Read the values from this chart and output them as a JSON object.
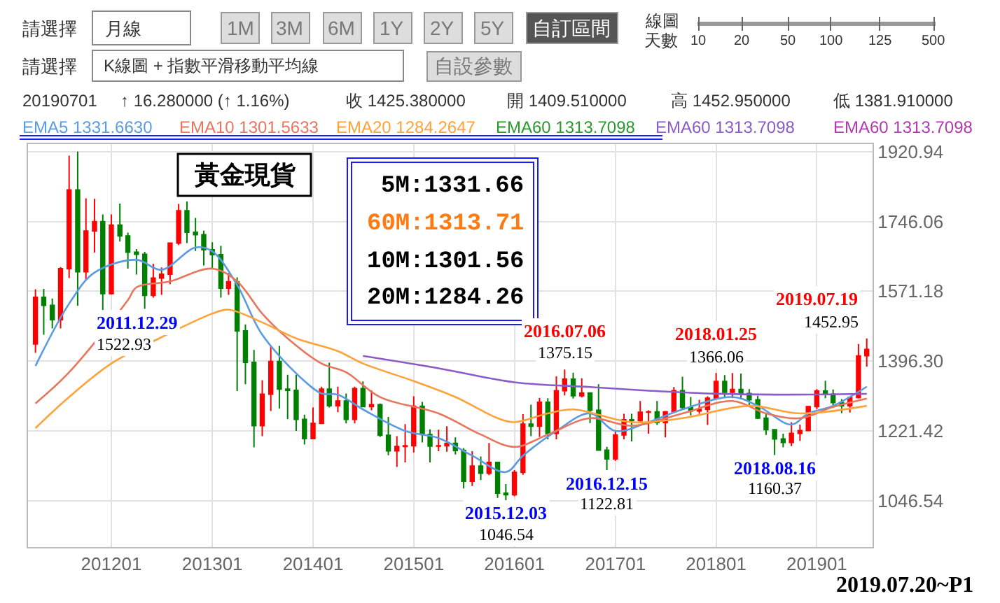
{
  "chart_data": {
    "type": "candlestick",
    "x": [
      "2011-04",
      "2011-05",
      "2011-06",
      "2011-07",
      "2011-08",
      "2011-09",
      "2011-10",
      "2011-11",
      "2011-12",
      "2012-01",
      "2012-02",
      "2012-03",
      "2012-04",
      "2012-05",
      "2012-06",
      "2012-07",
      "2012-08",
      "2012-09",
      "2012-10",
      "2012-11",
      "2012-12",
      "2013-01",
      "2013-02",
      "2013-03",
      "2013-04",
      "2013-05",
      "2013-06",
      "2013-07",
      "2013-08",
      "2013-09",
      "2013-10",
      "2013-11",
      "2013-12",
      "2014-01",
      "2014-02",
      "2014-03",
      "2014-04",
      "2014-05",
      "2014-06",
      "2014-07",
      "2014-08",
      "2014-09",
      "2014-10",
      "2014-11",
      "2014-12",
      "2015-01",
      "2015-02",
      "2015-03",
      "2015-04",
      "2015-05",
      "2015-06",
      "2015-07",
      "2015-08",
      "2015-09",
      "2015-10",
      "2015-11",
      "2015-12",
      "2016-01",
      "2016-02",
      "2016-03",
      "2016-04",
      "2016-05",
      "2016-06",
      "2016-07",
      "2016-08",
      "2016-09",
      "2016-10",
      "2016-11",
      "2016-12",
      "2017-01",
      "2017-02",
      "2017-03",
      "2017-04",
      "2017-05",
      "2017-06",
      "2017-07",
      "2017-08",
      "2017-09",
      "2017-10",
      "2017-11",
      "2017-12",
      "2018-01",
      "2018-02",
      "2018-03",
      "2018-04",
      "2018-05",
      "2018-06",
      "2018-07",
      "2018-08",
      "2018-09",
      "2018-10",
      "2018-11",
      "2018-12",
      "2019-01",
      "2019-02",
      "2019-03",
      "2019-04",
      "2019-05",
      "2019-06",
      "2019-07"
    ],
    "ohlc": [
      [
        1439,
        1576,
        1417,
        1556
      ],
      [
        1556,
        1577,
        1462,
        1536
      ],
      [
        1536,
        1553,
        1478,
        1500
      ],
      [
        1500,
        1632,
        1478,
        1628
      ],
      [
        1628,
        1911,
        1604,
        1825
      ],
      [
        1825,
        1920.94,
        1535,
        1620
      ],
      [
        1620,
        1804,
        1600,
        1722
      ],
      [
        1722,
        1803,
        1668,
        1746
      ],
      [
        1746,
        1764,
        1522.93,
        1565
      ],
      [
        1565,
        1764,
        1563,
        1737
      ],
      [
        1737,
        1791,
        1696,
        1710
      ],
      [
        1710,
        1718,
        1628,
        1669
      ],
      [
        1669,
        1677,
        1613,
        1664
      ],
      [
        1664,
        1670,
        1527,
        1561
      ],
      [
        1561,
        1640,
        1555,
        1604
      ],
      [
        1604,
        1631,
        1562,
        1614
      ],
      [
        1614,
        1692,
        1589,
        1692
      ],
      [
        1692,
        1790,
        1687,
        1773
      ],
      [
        1773,
        1796,
        1692,
        1719
      ],
      [
        1719,
        1755,
        1672,
        1713
      ],
      [
        1713,
        1723,
        1636,
        1675
      ],
      [
        1675,
        1694,
        1626,
        1663
      ],
      [
        1663,
        1685,
        1555,
        1579
      ],
      [
        1579,
        1617,
        1562,
        1595
      ],
      [
        1595,
        1606,
        1321,
        1472
      ],
      [
        1472,
        1488,
        1338,
        1393
      ],
      [
        1393,
        1424,
        1180,
        1234
      ],
      [
        1234,
        1348,
        1208,
        1313
      ],
      [
        1313,
        1434,
        1271,
        1395
      ],
      [
        1395,
        1434,
        1277,
        1326
      ],
      [
        1326,
        1362,
        1251,
        1323
      ],
      [
        1323,
        1362,
        1221,
        1250
      ],
      [
        1250,
        1262,
        1187,
        1202
      ],
      [
        1202,
        1280,
        1202,
        1240
      ],
      [
        1240,
        1332,
        1238,
        1326
      ],
      [
        1326,
        1392,
        1280,
        1284
      ],
      [
        1284,
        1332,
        1268,
        1296
      ],
      [
        1296,
        1315,
        1240,
        1250
      ],
      [
        1250,
        1332,
        1240,
        1327
      ],
      [
        1327,
        1345,
        1281,
        1282
      ],
      [
        1282,
        1323,
        1273,
        1287
      ],
      [
        1287,
        1290,
        1206,
        1210
      ],
      [
        1210,
        1256,
        1160,
        1171
      ],
      [
        1171,
        1208,
        1131,
        1182
      ],
      [
        1182,
        1238,
        1142,
        1184
      ],
      [
        1184,
        1308,
        1167,
        1283
      ],
      [
        1283,
        1294,
        1192,
        1212
      ],
      [
        1212,
        1225,
        1142,
        1183
      ],
      [
        1183,
        1224,
        1170,
        1184
      ],
      [
        1184,
        1233,
        1169,
        1190
      ],
      [
        1190,
        1205,
        1162,
        1172
      ],
      [
        1172,
        1178,
        1077,
        1095
      ],
      [
        1095,
        1170,
        1083,
        1133
      ],
      [
        1133,
        1157,
        1098,
        1115
      ],
      [
        1115,
        1191,
        1110,
        1142
      ],
      [
        1142,
        1142,
        1053,
        1065
      ],
      [
        1065,
        1088,
        1046.54,
        1061
      ],
      [
        1061,
        1123,
        1057,
        1117
      ],
      [
        1117,
        1263,
        1111,
        1238
      ],
      [
        1238,
        1287,
        1208,
        1233
      ],
      [
        1233,
        1304,
        1206,
        1293
      ],
      [
        1293,
        1303,
        1200,
        1215
      ],
      [
        1215,
        1358,
        1200,
        1322
      ],
      [
        1322,
        1375.15,
        1310,
        1351
      ],
      [
        1351,
        1367,
        1302,
        1309
      ],
      [
        1309,
        1353,
        1305,
        1316
      ],
      [
        1316,
        1317,
        1241,
        1273
      ],
      [
        1273,
        1338,
        1171,
        1173
      ],
      [
        1173,
        1181,
        1122.81,
        1151
      ],
      [
        1151,
        1220,
        1146,
        1211
      ],
      [
        1211,
        1264,
        1200,
        1249
      ],
      [
        1249,
        1264,
        1195,
        1247
      ],
      [
        1247,
        1296,
        1244,
        1268
      ],
      [
        1268,
        1273,
        1214,
        1269
      ],
      [
        1269,
        1296,
        1236,
        1242
      ],
      [
        1242,
        1271,
        1205,
        1269
      ],
      [
        1269,
        1331,
        1267,
        1322
      ],
      [
        1322,
        1357,
        1276,
        1280
      ],
      [
        1280,
        1306,
        1260,
        1271
      ],
      [
        1271,
        1299,
        1264,
        1275
      ],
      [
        1275,
        1308,
        1236,
        1303
      ],
      [
        1303,
        1366.06,
        1302,
        1345
      ],
      [
        1345,
        1361,
        1307,
        1318
      ],
      [
        1318,
        1366,
        1303,
        1325
      ],
      [
        1325,
        1365,
        1302,
        1315
      ],
      [
        1315,
        1326,
        1282,
        1299
      ],
      [
        1299,
        1309,
        1251,
        1253
      ],
      [
        1253,
        1266,
        1211,
        1224
      ],
      [
        1224,
        1225,
        1160.37,
        1201
      ],
      [
        1201,
        1214,
        1180,
        1192
      ],
      [
        1192,
        1243,
        1183,
        1215
      ],
      [
        1215,
        1237,
        1196,
        1222
      ],
      [
        1222,
        1284,
        1221,
        1282
      ],
      [
        1282,
        1326,
        1276,
        1321
      ],
      [
        1321,
        1347,
        1303,
        1313
      ],
      [
        1313,
        1325,
        1281,
        1292
      ],
      [
        1292,
        1301,
        1266,
        1284
      ],
      [
        1284,
        1306,
        1267,
        1305
      ],
      [
        1305,
        1439,
        1302,
        1409
      ],
      [
        1409.51,
        1452.95,
        1381.91,
        1425.38
      ]
    ],
    "colors": [
      "#ff0000",
      "#008000",
      "#008000",
      "#ff0000",
      "#ff0000",
      "#008000",
      "#ff0000",
      "#ff0000",
      "#008000",
      "#ff0000",
      "#008000",
      "#008000",
      "#008000",
      "#008000",
      "#ff0000",
      "#ff0000",
      "#ff0000",
      "#ff0000",
      "#008000",
      "#008000",
      "#008000",
      "#008000",
      "#008000",
      "#ff0000",
      "#008000",
      "#008000",
      "#008000",
      "#ff0000",
      "#ff0000",
      "#008000",
      "#008000",
      "#008000",
      "#008000",
      "#ff0000",
      "#ff0000",
      "#008000",
      "#ff0000",
      "#008000",
      "#ff0000",
      "#008000",
      "#ff0000",
      "#008000",
      "#008000",
      "#ff0000",
      "#ff0000",
      "#ff0000",
      "#008000",
      "#008000",
      "#ff0000",
      "#ff0000",
      "#008000",
      "#008000",
      "#ff0000",
      "#008000",
      "#ff0000",
      "#008000",
      "#008000",
      "#ff0000",
      "#ff0000",
      "#008000",
      "#ff0000",
      "#008000",
      "#ff0000",
      "#ff0000",
      "#008000",
      "#ff0000",
      "#008000",
      "#008000",
      "#008000",
      "#ff0000",
      "#ff0000",
      "#008000",
      "#ff0000",
      "#ff0000",
      "#008000",
      "#ff0000",
      "#ff0000",
      "#008000",
      "#008000",
      "#ff0000",
      "#ff0000",
      "#ff0000",
      "#008000",
      "#ff0000",
      "#008000",
      "#008000",
      "#008000",
      "#008000",
      "#008000",
      "#008000",
      "#ff0000",
      "#ff0000",
      "#ff0000",
      "#ff0000",
      "#008000",
      "#008000",
      "#008000",
      "#ff0000",
      "#ff0000",
      "#ff0000"
    ],
    "series": [
      {
        "name": "EMA5 1331.6630",
        "color": "#5b9be0",
        "type": "line",
        "x": [
          "2011-04",
          "2011-08",
          "2011-11",
          "2012-04",
          "2012-07",
          "2012-11",
          "2013-01",
          "2013-04",
          "2013-07",
          "2013-12",
          "2014-02",
          "2014-04",
          "2014-07",
          "2014-12",
          "2015-04",
          "2015-08",
          "2015-12",
          "2016-02",
          "2016-06",
          "2016-10",
          "2017-01",
          "2017-05",
          "2017-09",
          "2018-03",
          "2018-06",
          "2018-10",
          "2018-12",
          "2019-03",
          "2019-07"
        ],
        "values": [
          1384,
          1540,
          1618,
          1650,
          1625,
          1681,
          1671,
          1587,
          1462,
          1346,
          1315,
          1312,
          1275,
          1221,
          1203,
          1159,
          1118,
          1159,
          1221,
          1265,
          1221,
          1243,
          1275,
          1306,
          1284,
          1237,
          1265,
          1284,
          1332
        ]
      },
      {
        "name": "EMA10 1301.5633",
        "color": "#e8755e",
        "type": "line",
        "x": [
          "2011-04",
          "2011-08",
          "2012-03",
          "2012-04",
          "2012-08",
          "2013-01",
          "2013-04",
          "2013-07",
          "2013-10",
          "2014-02",
          "2014-05",
          "2014-09",
          "2015-04",
          "2015-09",
          "2016-01",
          "2016-05",
          "2016-10",
          "2017-03",
          "2017-09",
          "2018-03",
          "2018-07",
          "2018-11",
          "2019-03",
          "2019-07"
        ],
        "values": [
          1290,
          1368,
          1549,
          1581,
          1596,
          1628,
          1596,
          1515,
          1453,
          1390,
          1368,
          1306,
          1265,
          1212,
          1181,
          1212,
          1253,
          1234,
          1265,
          1296,
          1265,
          1253,
          1281,
          1302
        ]
      },
      {
        "name": "EMA20 1284.2647",
        "color": "#ffa23a",
        "type": "line",
        "x": [
          "2011-04",
          "2011-08",
          "2012-01",
          "2012-07",
          "2013-01",
          "2013-03",
          "2013-07",
          "2013-11",
          "2014-04",
          "2014-07",
          "2015-01",
          "2015-06",
          "2015-11",
          "2016-01",
          "2016-05",
          "2016-08",
          "2017-03",
          "2017-09",
          "2018-05",
          "2018-11",
          "2019-07"
        ],
        "values": [
          1228,
          1306,
          1390,
          1456,
          1515,
          1525,
          1493,
          1453,
          1421,
          1390,
          1346,
          1306,
          1253,
          1243,
          1265,
          1275,
          1243,
          1253,
          1284,
          1265,
          1284
        ]
      },
      {
        "name": "EMA60 1313.7098",
        "color": "#2a9a2a",
        "type": "line",
        "values": [
          null,
          null,
          null,
          null,
          null,
          null,
          null,
          null,
          null,
          null,
          null,
          null,
          null,
          null,
          null,
          null,
          null,
          null,
          null,
          null,
          null,
          null,
          null,
          null,
          null,
          null,
          null,
          null,
          null,
          null,
          null,
          null,
          null,
          null,
          null,
          null,
          null,
          null,
          null,
          null,
          null,
          null,
          null,
          null,
          null,
          null,
          null,
          null,
          null,
          null,
          null,
          null,
          null,
          null,
          null,
          null,
          null,
          null,
          null,
          null,
          null,
          null,
          null,
          null,
          null,
          null,
          null,
          null,
          null,
          null,
          null,
          null,
          null,
          null,
          null,
          null,
          null,
          null,
          null,
          null,
          null,
          null,
          null,
          null,
          null,
          null,
          null,
          null,
          null,
          null,
          null,
          null,
          null,
          null,
          null,
          null,
          null,
          null,
          null,
          null
        ]
      },
      {
        "name": "EMA60 1313.7098",
        "color": "#8a5cc8",
        "type": "line",
        "x": [
          "2014-07",
          "2015-04",
          "2016-01",
          "2016-10",
          "2017-05",
          "2017-12",
          "2018-08",
          "2019-07"
        ],
        "values": [
          1409,
          1378,
          1343,
          1331,
          1322,
          1315,
          1312,
          1314
        ]
      },
      {
        "name": "EMA60 1313.7098",
        "color": "#b03ab0",
        "type": "line",
        "values": [
          null,
          null,
          null,
          null,
          null,
          null,
          null,
          null,
          null,
          null,
          null,
          null,
          null,
          null,
          null,
          null,
          null,
          null,
          null,
          null,
          null,
          null,
          null,
          null,
          null,
          null,
          null,
          null,
          null,
          null,
          null,
          null,
          null,
          null,
          null,
          null,
          null,
          null,
          null,
          null,
          null,
          null,
          null,
          null,
          null,
          null,
          null,
          null,
          null,
          null,
          null,
          null,
          null,
          null,
          null,
          null,
          null,
          null,
          null,
          null,
          null,
          null,
          null,
          null,
          null,
          null,
          null,
          null,
          null,
          null,
          null,
          null,
          null,
          null,
          null,
          null,
          null,
          null,
          null,
          null,
          null,
          null,
          null,
          null,
          null,
          null,
          null,
          null,
          null,
          null,
          null,
          null,
          null,
          null,
          null,
          null,
          null,
          null,
          null,
          null
        ]
      }
    ],
    "legend": "top",
    "grid": true,
    "xlim": [
      "2011-03-05",
      "2019-07-22"
    ],
    "xticks": [
      {
        "value": "2012-01",
        "label": "201201"
      },
      {
        "value": "2013-01",
        "label": "201301"
      },
      {
        "value": "2014-01",
        "label": "201401"
      },
      {
        "value": "2015-01",
        "label": "201501"
      },
      {
        "value": "2016-01",
        "label": "201601"
      },
      {
        "value": "2017-01",
        "label": "201701"
      },
      {
        "value": "2018-01",
        "label": "201801"
      },
      {
        "value": "2019-01",
        "label": "201901"
      }
    ],
    "ylim": [
      930,
      1940
    ],
    "yticks": [
      1046.54,
      1221.42,
      {
        "value": 1396.3,
        "label": "1396.30"
      },
      1571.18,
      1746.06,
      1920.94
    ],
    "annotations": [
      "請選擇",
      "月線",
      "1M",
      "3M",
      "6M",
      "1Y",
      "2Y",
      "5Y",
      "自訂區間",
      "線圖",
      "天數",
      "10",
      "20",
      "50",
      "100",
      "125",
      "500",
      "請選擇",
      "K線圖 + 指數平滑移動平均線",
      "自設參數",
      "20190701",
      "↑ 16.280000 (↑ 1.16%)",
      "收 1425.380000",
      "開 1409.510000",
      "高 1452.950000",
      "低 1381.910000",
      "黃金現貨",
      "5M:1331.66",
      "60M:1313.71",
      "10M:1301.56",
      "20M:1284.26",
      "2019.07.20~P1",
      {
        "text": "2011.12.29",
        "x": "2011-12",
        "y": 1522.93
      },
      {
        "text": "1522.93",
        "x": "2011-12",
        "y": 1522.93
      },
      {
        "text": "2015.12.03",
        "x": "2015-12",
        "y": 1046.54
      },
      {
        "text": "1046.54",
        "x": "2015-12",
        "y": 1046.54
      },
      {
        "text": "2016.07.06",
        "x": "2016-07",
        "y": 1375.15
      },
      {
        "text": "1375.15",
        "x": "2016-07",
        "y": 1375.15
      },
      {
        "text": "2016.12.15",
        "x": "2016-12",
        "y": 1122.81
      },
      {
        "text": "1122.81",
        "x": "2016-12",
        "y": 1122.81
      },
      {
        "text": "2018.01.25",
        "x": "2018-01",
        "y": 1366.06
      },
      {
        "text": "1366.06",
        "x": "2018-01",
        "y": 1366.06
      },
      {
        "text": "2018.08.16",
        "x": "2018-08",
        "y": 1160.37
      },
      {
        "text": "1160.37",
        "x": "2018-08",
        "y": 1160.37
      },
      {
        "text": "2019.07.19",
        "x": "2019-07",
        "y": 1452.95
      },
      {
        "text": "1452.95",
        "x": "2019-07",
        "y": 1452.95
      }
    ]
  }
}
